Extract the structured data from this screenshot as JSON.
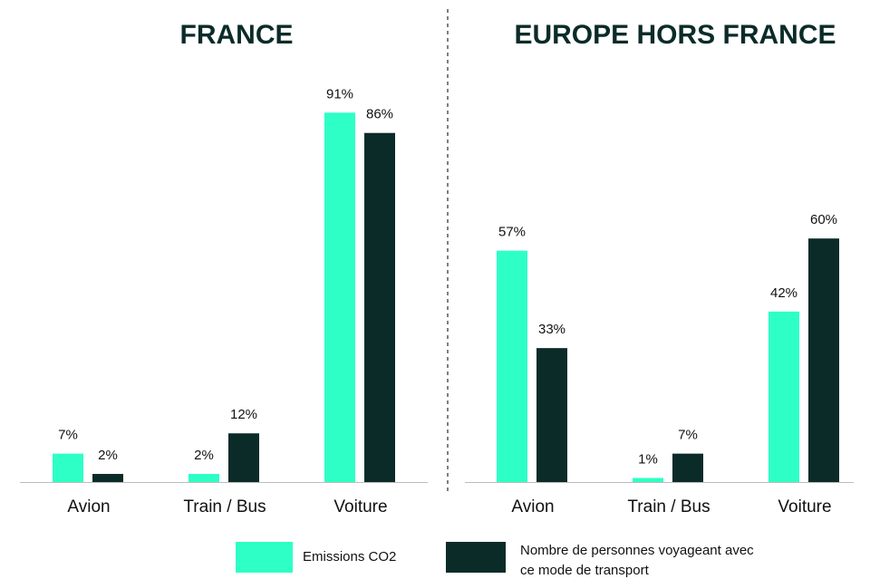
{
  "legend": [
    {
      "name": "Emissions CO2",
      "color": "#2effc6"
    },
    {
      "name": "Nombre de personnes voyageant avec ce mode de transport",
      "color": "#0b2b29"
    }
  ],
  "chart_data": [
    {
      "type": "bar",
      "title": "FRANCE",
      "categories": [
        "Avion",
        "Train / Bus",
        "Voiture"
      ],
      "ylim": [
        0,
        100
      ],
      "series": [
        {
          "values": [
            7,
            2,
            91
          ],
          "value_labels": [
            "7%",
            "2%",
            "91%"
          ]
        },
        {
          "values": [
            2,
            12,
            86
          ],
          "value_labels": [
            "2%",
            "12%",
            "86%"
          ]
        }
      ]
    },
    {
      "type": "bar",
      "title": "EUROPE HORS FRANCE",
      "categories": [
        "Avion",
        "Train / Bus",
        "Voiture"
      ],
      "ylim": [
        0,
        100
      ],
      "series": [
        {
          "values": [
            57,
            1,
            42
          ],
          "value_labels": [
            "57%",
            "1%",
            "42%"
          ]
        },
        {
          "values": [
            33,
            7,
            60
          ],
          "value_labels": [
            "33%",
            "7%",
            "60%"
          ]
        }
      ]
    }
  ]
}
